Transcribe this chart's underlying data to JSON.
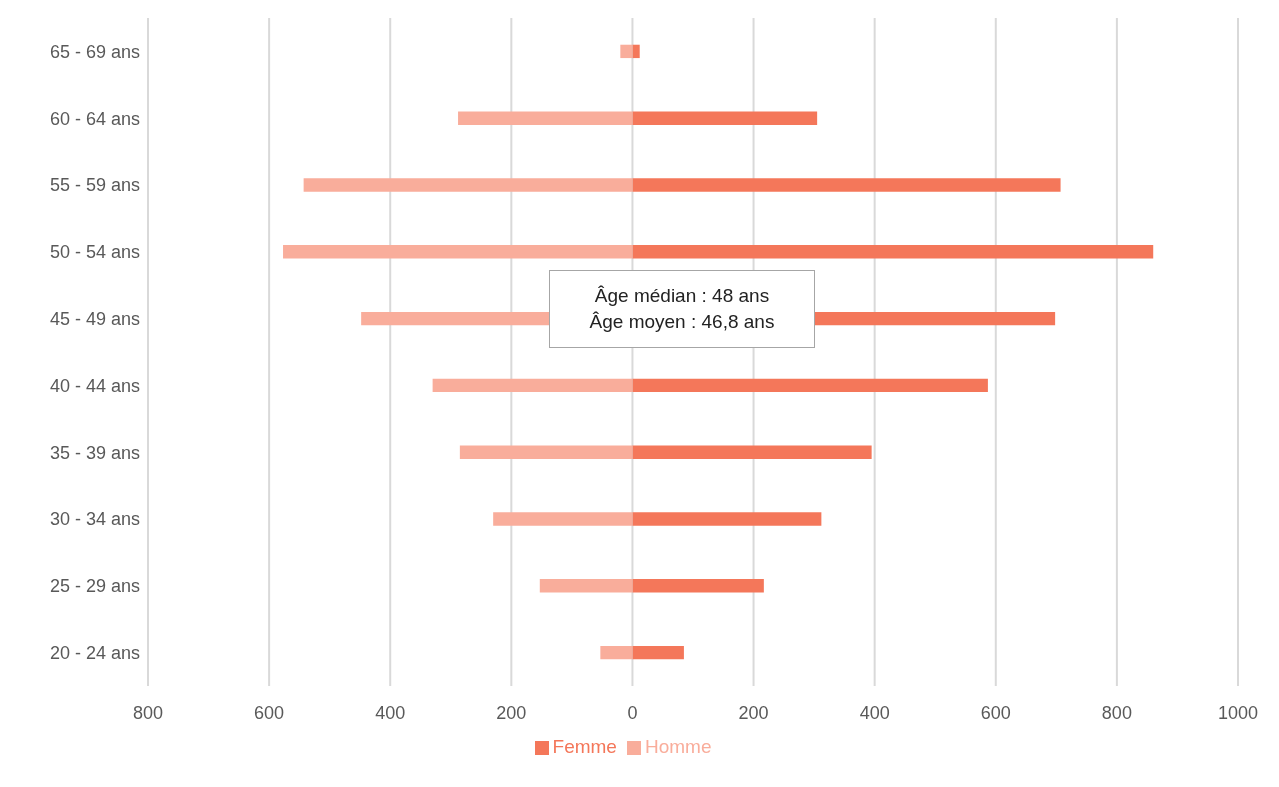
{
  "chart_data": {
    "type": "bar",
    "orientation": "horizontal",
    "stacked": true,
    "categories": [
      "65 - 69 ans",
      "60 - 64 ans",
      "55 - 59 ans",
      "50 - 54 ans",
      "45 - 49 ans",
      "40 - 44 ans",
      "35 - 39 ans",
      "30 - 34 ans",
      "25 - 29 ans",
      "20 - 24 ans"
    ],
    "series": [
      {
        "name": "Femme",
        "color": "#f4775a",
        "values": [
          12,
          305,
          707,
          860,
          698,
          587,
          395,
          312,
          217,
          85
        ]
      },
      {
        "name": "Homme",
        "color": "#f9ad9b",
        "values": [
          -20,
          -288,
          -543,
          -577,
          -448,
          -330,
          -285,
          -230,
          -153,
          -53
        ]
      }
    ],
    "xlim": [
      -800,
      1000
    ],
    "xticks": [
      {
        "value": -800,
        "label": "800"
      },
      {
        "value": -600,
        "label": "600"
      },
      {
        "value": -400,
        "label": "400"
      },
      {
        "value": -200,
        "label": "200"
      },
      0,
      200,
      400,
      600,
      800,
      1000
    ],
    "grid": "x",
    "legend": "bottom",
    "annotations": [
      "Âge médian : 48 ans",
      "Âge moyen : 46,8 ans"
    ]
  }
}
